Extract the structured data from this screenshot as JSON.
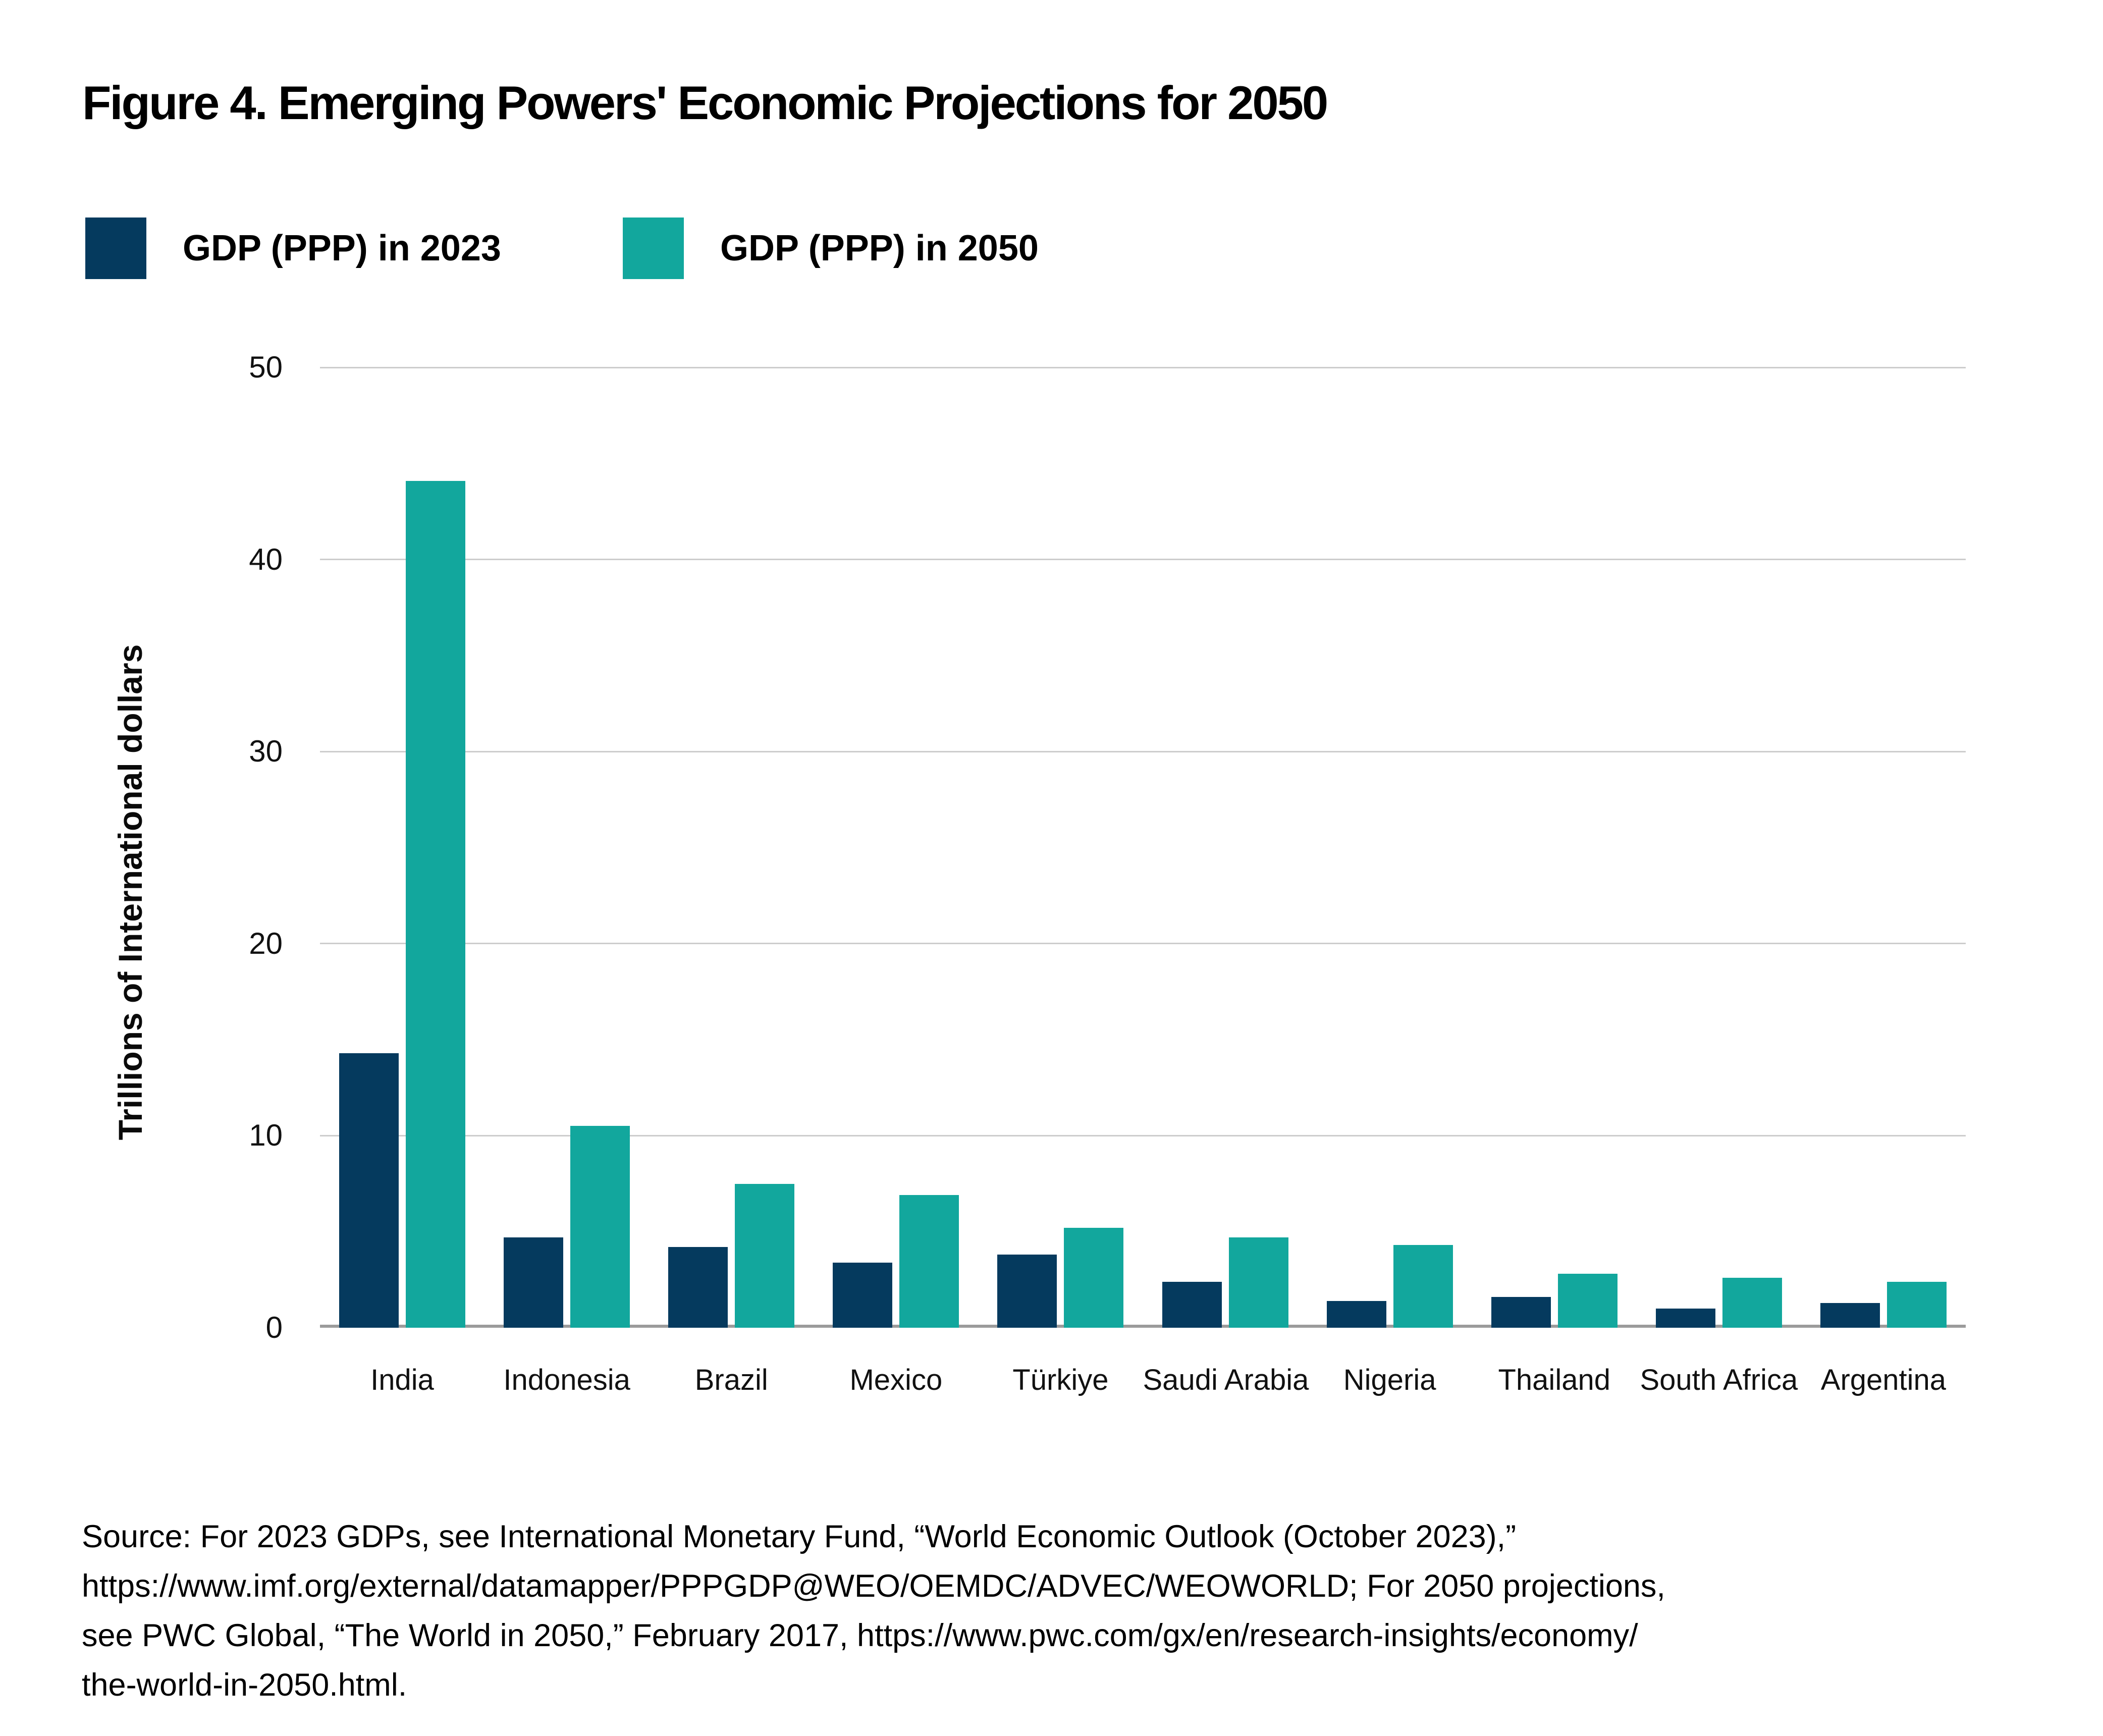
{
  "title": "Figure 4. Emerging Powers' Economic Projections for 2050",
  "legend": {
    "items": [
      {
        "label": "GDP (PPP) in 2023",
        "color": "#053A5E"
      },
      {
        "label": "GDP (PPP) in 2050",
        "color": "#12A79D"
      }
    ]
  },
  "chart_data": {
    "type": "bar",
    "title": "Figure 4. Emerging Powers' Economic Projections for 2050",
    "categories": [
      "India",
      "Indonesia",
      "Brazil",
      "Mexico",
      "Türkiye",
      "Saudi Arabia",
      "Nigeria",
      "Thailand",
      "South Africa",
      "Argentina"
    ],
    "series": [
      {
        "name": "GDP (PPP) in 2023",
        "color": "#053A5E",
        "values": [
          14.3,
          4.7,
          4.2,
          3.4,
          3.8,
          2.4,
          1.4,
          1.6,
          1.0,
          1.3
        ]
      },
      {
        "name": "GDP (PPP) in 2050",
        "color": "#12A79D",
        "values": [
          44.1,
          10.5,
          7.5,
          6.9,
          5.2,
          4.7,
          4.3,
          2.8,
          2.6,
          2.4
        ]
      }
    ],
    "xlabel": "",
    "ylabel": "Trillions of International dollars",
    "ylim": [
      0,
      50
    ],
    "yticks": [
      0,
      10,
      20,
      30,
      40,
      50
    ],
    "grid": true,
    "legend_position": "top-left",
    "gridline_color": "#cdcdcd",
    "baseline_color": "#9b9b9b"
  },
  "source": {
    "lines": [
      "Source: For 2023 GDPs, see International Monetary Fund, “World Economic Outlook (October 2023),”",
      "https://www.imf.org/external/datamapper/PPPGDP@WEO/OEMDC/ADVEC/WEOWORLD; For 2050 projections,",
      "see PWC Global, “The World in 2050,” February 2017, https://www.pwc.com/gx/en/research-insights/economy/",
      "the-world-in-2050.html."
    ]
  }
}
